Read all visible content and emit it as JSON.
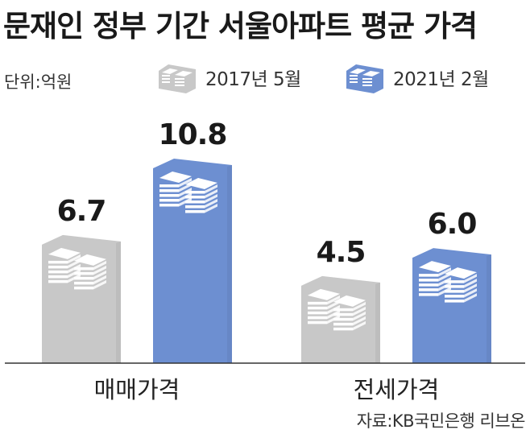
{
  "title": "문재인 정부 기간 서울아파트 평균 가격",
  "unit_label": "단위:억원",
  "source": "자료:KB국민은행 리브온",
  "legend": [
    {
      "label": "2017년 5월",
      "icon": "money-stack-icon",
      "color": "#c8c8c8"
    },
    {
      "label": "2021년 2월",
      "icon": "money-stack-icon",
      "color": "#6d8fd1"
    }
  ],
  "chart_data": {
    "type": "bar",
    "title": "문재인 정부 기간 서울아파트 평균 가격",
    "ylabel": "단위:억원",
    "categories": [
      "매매가격",
      "전세가격"
    ],
    "series": [
      {
        "name": "2017년 5월",
        "values": [
          6.7,
          4.5
        ],
        "labels": [
          "6.7",
          "4.5"
        ],
        "color": "#c8c8c8"
      },
      {
        "name": "2021년 2월",
        "values": [
          10.8,
          6.0
        ],
        "labels": [
          "10.8",
          "6.0"
        ],
        "color": "#6d8fd1"
      }
    ],
    "ylim": [
      0,
      10.8
    ],
    "grid": false,
    "legend_position": "top"
  }
}
